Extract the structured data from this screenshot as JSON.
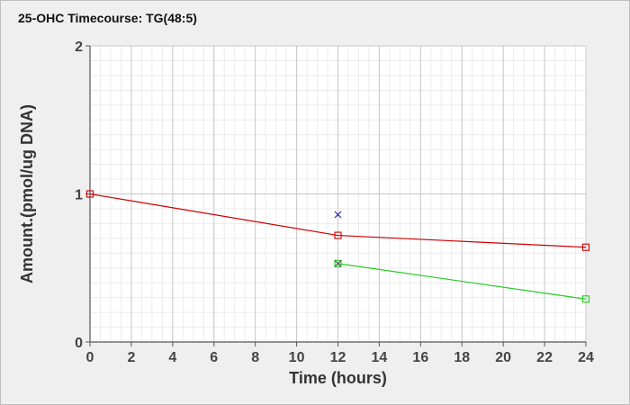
{
  "chart_data": {
    "type": "line",
    "title": "25-OHC Timecourse: TG(48:5)",
    "xlabel": "Time (hours)",
    "ylabel": "Amount.(pmol/ug DNA)",
    "xlim": [
      0,
      24
    ],
    "ylim": [
      0,
      2
    ],
    "x_ticks": [
      0,
      2,
      4,
      6,
      8,
      10,
      12,
      14,
      16,
      18,
      20,
      22,
      24
    ],
    "y_ticks": [
      0,
      1,
      2
    ],
    "grid": true,
    "legend": "none",
    "series": [
      {
        "color": "#cc0000",
        "marker": "square",
        "points": [
          {
            "x": 0,
            "y": 1.0
          },
          {
            "x": 12,
            "y": 0.72
          },
          {
            "x": 24,
            "y": 0.64
          }
        ]
      },
      {
        "color": "#22cc22",
        "marker": "square",
        "points": [
          {
            "x": 12,
            "y": 0.53
          },
          {
            "x": 24,
            "y": 0.29
          }
        ]
      },
      {
        "color": "#1a1aaa",
        "marker": "x",
        "points": [
          {
            "x": 12,
            "y": 0.86
          }
        ]
      },
      {
        "color": "#555555",
        "marker": "x",
        "points": [
          {
            "x": 12,
            "y": 0.53
          }
        ]
      }
    ]
  }
}
